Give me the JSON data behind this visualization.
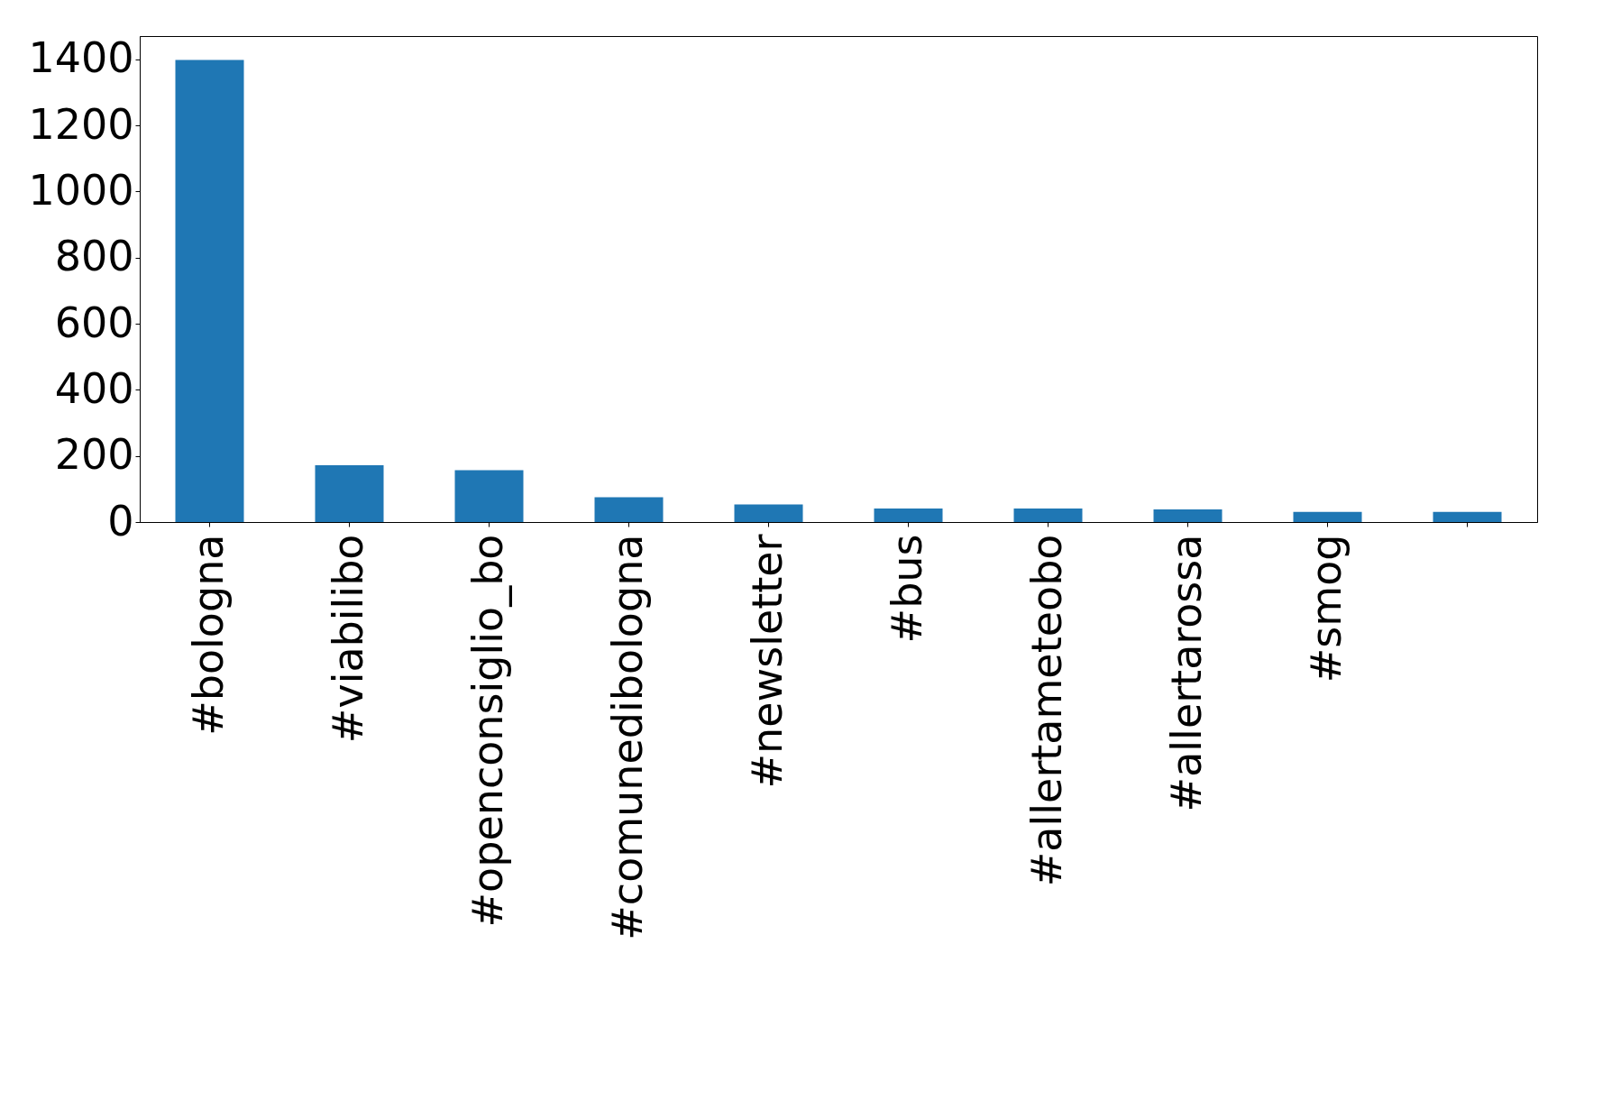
{
  "chart_data": {
    "type": "bar",
    "categories": [
      "#bologna",
      "#viabilibo",
      "#openconsiglio_bo",
      "#comunedibologna",
      "#newsletter",
      "#bus",
      "#allertameteobo",
      "#allertarossa",
      "#smog",
      null
    ],
    "values": [
      1398,
      172,
      157,
      75,
      53,
      41,
      41,
      38,
      31,
      31
    ],
    "color": "#1f77b4",
    "ylim": [
      0,
      1470
    ],
    "yticks": [
      0,
      200,
      400,
      600,
      800,
      1000,
      1200,
      1400
    ],
    "grid": false
  }
}
